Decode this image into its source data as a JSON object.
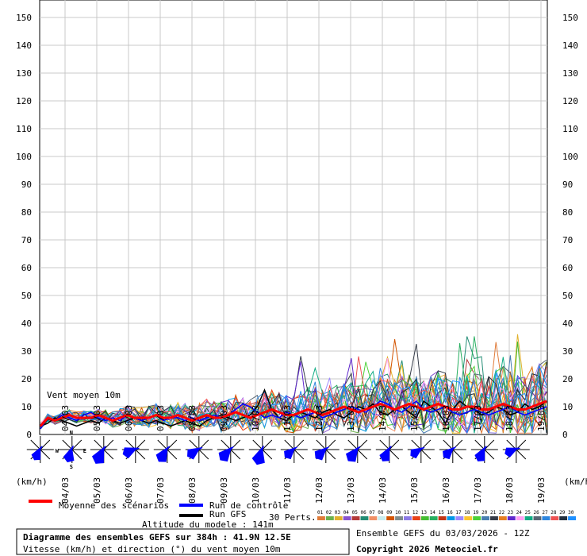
{
  "chart_data": {
    "type": "line",
    "unit_label": "(km/h)",
    "ylim": [
      0,
      155
    ],
    "yticks": [
      0,
      10,
      20,
      30,
      40,
      50,
      60,
      70,
      80,
      90,
      100,
      110,
      120,
      130,
      140,
      150
    ],
    "dates": [
      "04/03",
      "05/03",
      "06/03",
      "07/03",
      "08/03",
      "09/03",
      "10/03",
      "11/03",
      "12/03",
      "13/03",
      "14/03",
      "15/03",
      "16/03",
      "17/03",
      "18/03",
      "19/03"
    ],
    "inline_label": "Vent moyen 10m",
    "compass_letters": [
      "N",
      "E",
      "S",
      "W"
    ],
    "mean_series": {
      "name": "Moyenne des scénarios",
      "color": "#ff0000",
      "values": [
        3,
        6,
        5,
        6,
        7,
        6,
        6,
        6,
        7,
        6,
        5,
        6,
        7,
        6,
        6,
        6,
        7,
        6,
        6,
        7,
        6,
        5,
        6,
        7,
        6,
        6,
        7,
        8,
        7,
        6,
        7,
        8,
        9,
        8,
        7,
        7,
        8,
        9,
        8,
        7,
        8,
        9,
        10,
        9,
        8,
        9,
        10,
        11,
        10,
        9,
        10,
        11,
        10,
        9,
        10,
        11,
        10,
        9,
        9,
        10,
        10,
        9,
        9,
        10,
        11,
        10,
        9,
        9,
        10,
        11,
        12
      ]
    },
    "control_series": {
      "name": "Run de contrôle",
      "color": "#0000ff",
      "values": [
        2,
        6,
        5,
        7,
        6,
        5,
        7,
        8,
        6,
        5,
        6,
        5,
        7,
        6,
        5,
        6,
        7,
        5,
        6,
        6,
        5,
        6,
        5,
        6,
        7,
        6,
        7,
        9,
        11,
        10,
        8,
        6,
        7,
        6,
        8,
        7,
        6,
        7,
        8,
        6,
        7,
        8,
        9,
        10,
        9,
        8,
        10,
        12,
        11,
        9,
        8,
        10,
        12,
        9,
        8,
        9,
        10,
        8,
        7,
        8,
        9,
        8,
        7,
        8,
        9,
        10,
        8,
        7,
        8,
        9,
        10
      ]
    },
    "gfs_series": {
      "name": "Run GFS",
      "color": "#000000",
      "values": [
        3,
        4,
        6,
        5,
        4,
        3,
        4,
        5,
        4,
        6,
        5,
        4,
        5,
        6,
        5,
        4,
        5,
        4,
        3,
        4,
        5,
        4,
        3,
        5,
        6,
        7,
        6,
        5,
        6,
        7,
        10,
        16,
        9,
        6,
        5,
        7,
        8,
        7,
        6,
        8,
        9,
        7,
        6,
        8,
        10,
        9,
        11,
        8,
        7,
        9,
        10,
        8,
        6,
        12,
        10,
        8,
        4,
        9,
        12,
        10,
        9,
        7,
        8,
        10,
        9,
        7,
        8,
        11,
        9,
        10,
        12
      ]
    },
    "perturbation_count": 30,
    "perturbation_colors": [
      "#e07b39",
      "#6ab04c",
      "#e1b12c",
      "#8854d0",
      "#b33939",
      "#218c74",
      "#f19066",
      "#c7ecee",
      "#d35400",
      "#7f8c8d",
      "#8c7ae6",
      "#e84118",
      "#44bd32",
      "#27ae60",
      "#c23616",
      "#0097e6",
      "#9c88ff",
      "#fbc531",
      "#4cd137",
      "#487eb0",
      "#353b48",
      "#e67e22",
      "#5f27cd",
      "#ff9ff3",
      "#10ac84",
      "#576574",
      "#2e86de",
      "#ee5253",
      "#222f3e",
      "#1e90ff"
    ],
    "wind_roses": [
      {
        "dir": 210,
        "size": 0.6
      },
      {
        "dir": 200,
        "size": 0.7
      },
      {
        "dir": 210,
        "size": 0.9
      },
      {
        "dir": 250,
        "size": 0.7
      },
      {
        "dir": 215,
        "size": 0.8
      },
      {
        "dir": 240,
        "size": 0.7
      },
      {
        "dir": 225,
        "size": 0.8
      },
      {
        "dir": 200,
        "size": 0.9
      },
      {
        "dir": 230,
        "size": 0.6
      },
      {
        "dir": 230,
        "size": 0.7
      },
      {
        "dir": 220,
        "size": 0.8
      },
      {
        "dir": 210,
        "size": 0.7
      },
      {
        "dir": 240,
        "size": 0.6
      },
      {
        "dir": 230,
        "size": 0.6
      },
      {
        "dir": 210,
        "size": 0.7
      },
      {
        "dir": 250,
        "size": 0.6
      }
    ]
  },
  "legend": {
    "mean": "Moyenne des scénarios",
    "control": "Run de contrôle",
    "gfs": "Run GFS",
    "perts": "30 Perts.",
    "altitude": "Altitude du modele : 141m"
  },
  "footer": {
    "title": "Diagramme des ensembles GEFS sur 384h : 41.9N 12.5E",
    "subtitle": "Vitesse (km/h) et direction (°) du vent moyen 10m",
    "run": "Ensemble GEFS du 03/03/2026 - 12Z",
    "copyright": "Copyright 2026 Meteociel.fr"
  }
}
